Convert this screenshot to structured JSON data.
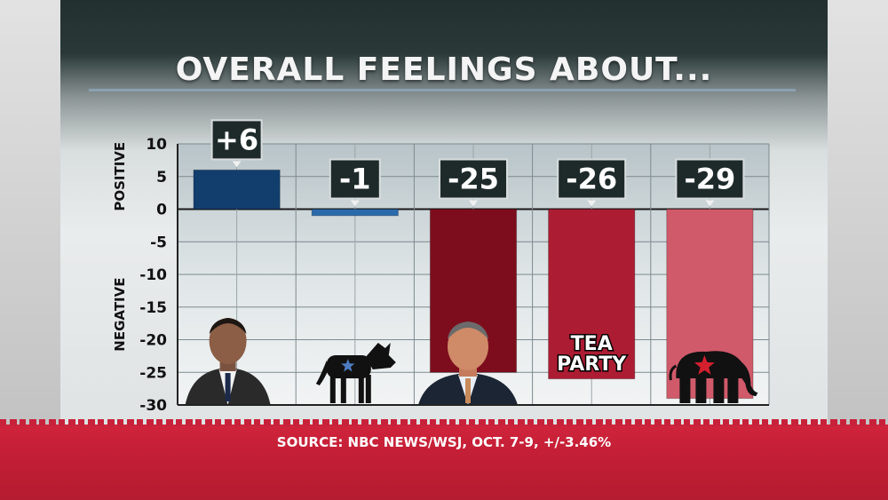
{
  "title": "OVERALL FEELINGS ABOUT...",
  "source": "SOURCE: NBC NEWS/WSJ, OCT. 7-9, +/-3.46%",
  "colors": {
    "bar_obama": "#123e6e",
    "bar_democrats": "#2a6aab",
    "bar_boehner": "#7d0d1c",
    "bar_teaparty": "#ac1c33",
    "bar_republicans": "#d05a6a",
    "footer": "#c41f36"
  },
  "chart_data": {
    "type": "bar",
    "title": "OVERALL FEELINGS ABOUT...",
    "xlabel": "",
    "ylabel_positive": "POSITIVE",
    "ylabel_negative": "NEGATIVE",
    "ylim": [
      -30,
      10
    ],
    "yticks": [
      10,
      5,
      0,
      -5,
      -10,
      -15,
      -20,
      -25,
      -30
    ],
    "grid": true,
    "categories": [
      "Obama",
      "Democratic Party",
      "John Boehner",
      "Tea Party",
      "Republican Party"
    ],
    "values": [
      6,
      -1,
      -25,
      -26,
      -29
    ],
    "value_labels": [
      "+6",
      "-1",
      "-25",
      "-26",
      "-29"
    ],
    "bar_colors": [
      "#123e6e",
      "#2a6aab",
      "#7d0d1c",
      "#ac1c33",
      "#d05a6a"
    ],
    "icons": [
      "obama-photo",
      "donkey-icon",
      "boehner-photo",
      "tea-party-label",
      "elephant-icon"
    ],
    "annotations": [
      "TEA",
      "PARTY"
    ]
  }
}
